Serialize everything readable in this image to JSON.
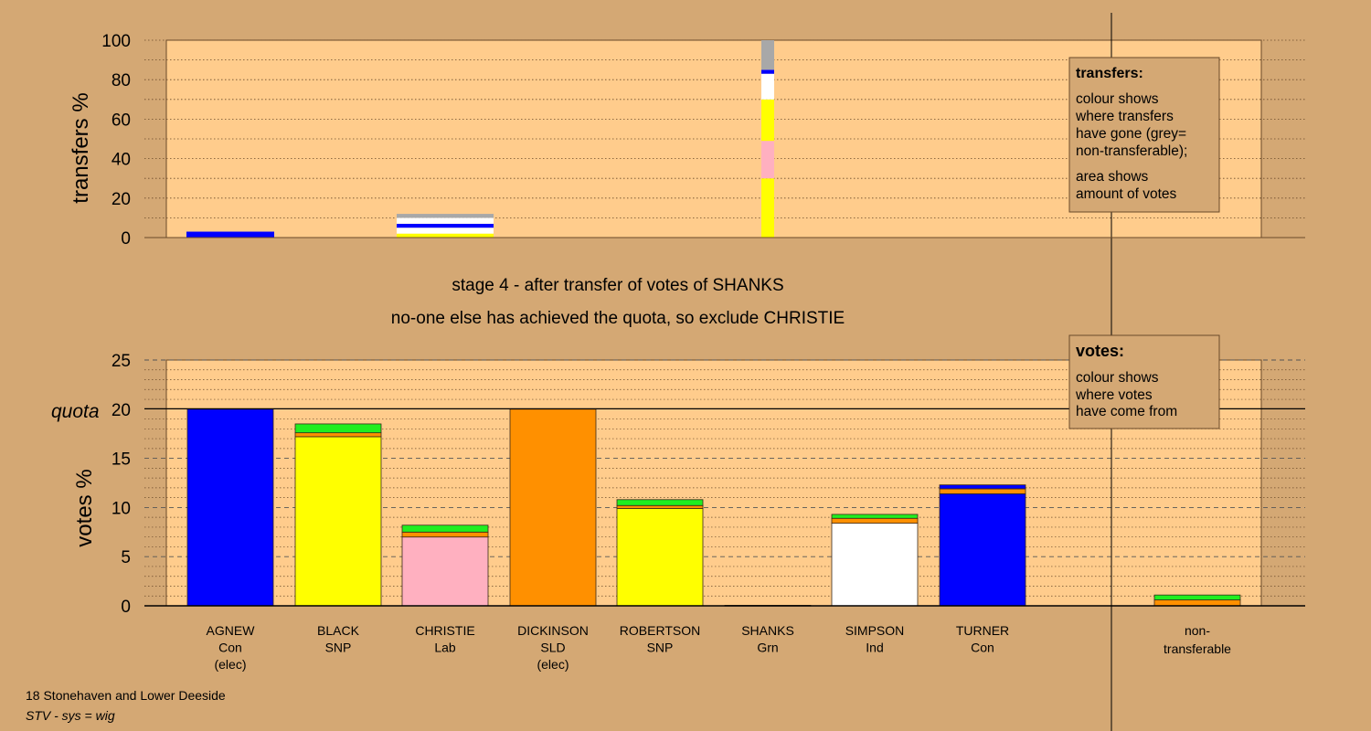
{
  "colors": {
    "background": "#d4a874",
    "plot_background": "#ffcc8c",
    "Con": "#0000ff",
    "SNP": "#ffff00",
    "Lab": "#ffb0c0",
    "SLD": "#ff9000",
    "Grn": "#20ee20",
    "Ind": "#ffffff",
    "non_transferable": "#a8a8a8"
  },
  "stage_text": "stage 4 - after transfer of votes of SHANKS",
  "status_text": "no-one else has achieved the quota, so exclude CHRISTIE",
  "footer": {
    "line1": "18 Stonehaven and Lower Deeside",
    "line2": "STV - sys = wig"
  },
  "legend_transfers": {
    "title": "transfers:",
    "lines": [
      "colour shows",
      "where transfers",
      "have gone (grey=",
      "non-transferable);",
      "area shows",
      "amount of votes"
    ]
  },
  "legend_votes": {
    "title": "votes:",
    "lines": [
      "colour shows",
      "where votes",
      "have come from"
    ]
  },
  "chart_data": [
    {
      "type": "bar",
      "name": "transfers",
      "ylabel": "transfers %",
      "ylim": [
        0,
        100
      ],
      "yticks": [
        0,
        20,
        40,
        60,
        80,
        100
      ],
      "grid": "dotted",
      "categories": [
        "AGNEW",
        "BLACK",
        "CHRISTIE",
        "DICKINSON",
        "ROBERTSON",
        "SHANKS",
        "SIMPSON",
        "TURNER"
      ],
      "bars": [
        {
          "category": "AGNEW",
          "segments": [
            {
              "party": "Con",
              "value": 3
            }
          ]
        },
        {
          "category": "CHRISTIE",
          "segments": [
            {
              "party": "SNP",
              "value": 2
            },
            {
              "party": "Ind",
              "value": 3
            },
            {
              "party": "Con",
              "value": 2
            },
            {
              "party": "Ind",
              "value": 3
            },
            {
              "party": "non_transferable",
              "value": 2
            }
          ]
        },
        {
          "category": "SHANKS",
          "segments": [
            {
              "party": "SNP",
              "value": 30
            },
            {
              "party": "Lab",
              "value": 19
            },
            {
              "party": "SNP",
              "value": 21
            },
            {
              "party": "Ind",
              "value": 13
            },
            {
              "party": "Con",
              "value": 2
            },
            {
              "party": "non_transferable",
              "value": 15
            }
          ]
        }
      ]
    },
    {
      "type": "bar",
      "name": "votes",
      "ylabel": "votes %",
      "ylim": [
        0,
        25
      ],
      "yticks": [
        0,
        5,
        10,
        15,
        20,
        25
      ],
      "quota": 20,
      "quota_label": "quota",
      "grid": "dashed",
      "categories": [
        {
          "name": "AGNEW",
          "party": "Con",
          "note": "(elec)"
        },
        {
          "name": "BLACK",
          "party": "SNP",
          "note": ""
        },
        {
          "name": "CHRISTIE",
          "party": "Lab",
          "note": ""
        },
        {
          "name": "DICKINSON",
          "party": "SLD",
          "note": "(elec)"
        },
        {
          "name": "ROBERTSON",
          "party": "SNP",
          "note": ""
        },
        {
          "name": "SHANKS",
          "party": "Grn",
          "note": ""
        },
        {
          "name": "SIMPSON",
          "party": "Ind",
          "note": ""
        },
        {
          "name": "TURNER",
          "party": "Con",
          "note": ""
        }
      ],
      "nontransferable_label_1": "non-",
      "nontransferable_label_2": "transferable",
      "bars": [
        {
          "category": "AGNEW",
          "segments": [
            {
              "party": "Con",
              "value": 20
            }
          ]
        },
        {
          "category": "BLACK",
          "segments": [
            {
              "party": "SNP",
              "value": 17.2
            },
            {
              "party": "SLD",
              "value": 0.4
            },
            {
              "party": "Grn",
              "value": 0.9
            }
          ]
        },
        {
          "category": "CHRISTIE",
          "segments": [
            {
              "party": "Lab",
              "value": 7.0
            },
            {
              "party": "SLD",
              "value": 0.5
            },
            {
              "party": "Grn",
              "value": 0.7
            }
          ]
        },
        {
          "category": "DICKINSON",
          "segments": [
            {
              "party": "SLD",
              "value": 20
            }
          ]
        },
        {
          "category": "ROBERTSON",
          "segments": [
            {
              "party": "SNP",
              "value": 9.9
            },
            {
              "party": "SLD",
              "value": 0.3
            },
            {
              "party": "Grn",
              "value": 0.6
            }
          ]
        },
        {
          "category": "SHANKS",
          "segments": [
            {
              "party": "Grn",
              "value": 0.05
            }
          ]
        },
        {
          "category": "SIMPSON",
          "segments": [
            {
              "party": "Ind",
              "value": 8.4
            },
            {
              "party": "SLD",
              "value": 0.5
            },
            {
              "party": "Grn",
              "value": 0.4
            }
          ]
        },
        {
          "category": "TURNER",
          "segments": [
            {
              "party": "Con",
              "value": 11.4
            },
            {
              "party": "SLD",
              "value": 0.5
            },
            {
              "party": "Con",
              "value": 0.4
            }
          ]
        },
        {
          "category": "non-transferable",
          "segments": [
            {
              "party": "SLD",
              "value": 0.6
            },
            {
              "party": "Grn",
              "value": 0.5
            }
          ]
        }
      ]
    }
  ]
}
